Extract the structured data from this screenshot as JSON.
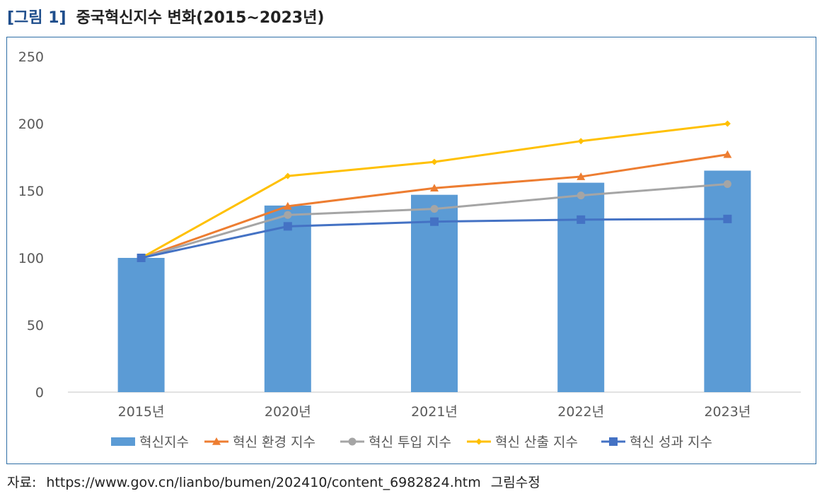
{
  "figure": {
    "label": "[그림 1]",
    "title": "중국혁신지수 변화(2015~2023년)"
  },
  "source": {
    "prefix": "자료:",
    "url": "https://www.gov.cn/lianbo/bumen/202410/content_6982824.htm",
    "note": "그림수정"
  },
  "chart_data": {
    "type": "bar",
    "categories": [
      "2015년",
      "2020년",
      "2021년",
      "2022년",
      "2023년"
    ],
    "ylim": [
      0,
      250
    ],
    "yticks": [
      0,
      50,
      100,
      150,
      200,
      250
    ],
    "grid": false,
    "legend_position": "bottom",
    "series": [
      {
        "name": "혁신지수",
        "kind": "bar",
        "color": "#5b9bd5",
        "marker": "rect",
        "values": [
          100,
          139,
          147,
          156,
          165
        ]
      },
      {
        "name": "혁신 환경 지수",
        "kind": "line",
        "color": "#ed7d31",
        "marker": "triangle",
        "values": [
          100,
          138.5,
          152,
          160.5,
          177
        ]
      },
      {
        "name": "혁신 투입 지수",
        "kind": "line",
        "color": "#a5a5a5",
        "marker": "circle",
        "values": [
          100,
          132,
          136.5,
          146.5,
          155
        ]
      },
      {
        "name": "혁신 산출 지수",
        "kind": "line",
        "color": "#ffc000",
        "marker": "diamond",
        "values": [
          100,
          161,
          171.5,
          187,
          200
        ]
      },
      {
        "name": "혁신 성과 지수",
        "kind": "line",
        "color": "#4472c4",
        "marker": "square",
        "values": [
          100,
          123.5,
          127,
          128.5,
          129
        ]
      }
    ]
  }
}
